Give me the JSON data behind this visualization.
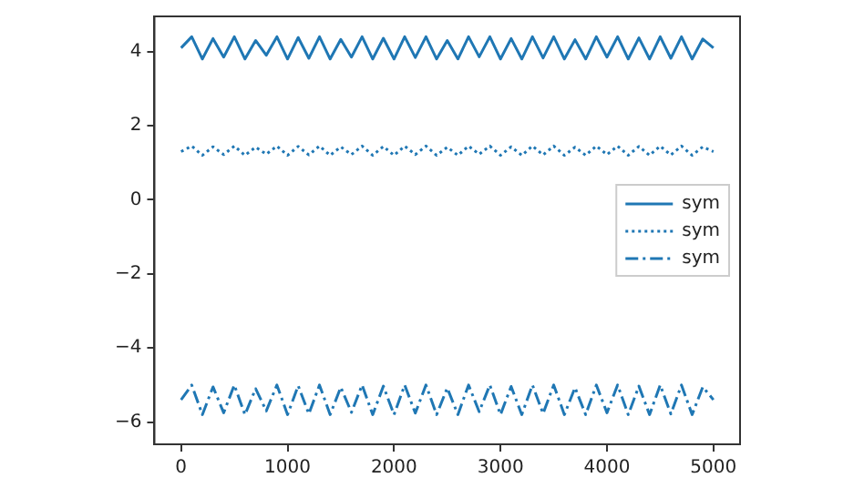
{
  "chart_data": {
    "type": "line",
    "x": [
      0,
      100,
      200,
      300,
      400,
      500,
      600,
      700,
      800,
      900,
      1000,
      1100,
      1200,
      1300,
      1400,
      1500,
      1600,
      1700,
      1800,
      1900,
      2000,
      2100,
      2200,
      2300,
      2400,
      2500,
      2600,
      2700,
      2800,
      2900,
      3000,
      3100,
      3200,
      3300,
      3400,
      3500,
      3600,
      3700,
      3800,
      3900,
      4000,
      4100,
      4200,
      4300,
      4400,
      4500,
      4600,
      4700,
      4800,
      4900,
      5000
    ],
    "series": [
      {
        "name": "sym",
        "color": "#1f77b4",
        "line_style": "solid",
        "values": [
          4.1,
          4.4,
          3.8,
          4.35,
          3.85,
          4.4,
          3.8,
          4.3,
          3.9,
          4.4,
          3.8,
          4.38,
          3.82,
          4.4,
          3.8,
          4.33,
          3.85,
          4.4,
          3.8,
          4.36,
          3.8,
          4.4,
          3.84,
          4.4,
          3.8,
          4.3,
          3.8,
          4.4,
          3.86,
          4.4,
          3.8,
          4.35,
          3.8,
          4.4,
          3.83,
          4.4,
          3.8,
          4.32,
          3.8,
          4.4,
          3.85,
          4.4,
          3.8,
          4.37,
          3.8,
          4.4,
          3.82,
          4.4,
          3.8,
          4.34,
          4.1
        ]
      },
      {
        "name": "sym",
        "color": "#1f77b4",
        "line_style": "dotted",
        "values": [
          1.3,
          1.45,
          1.2,
          1.43,
          1.22,
          1.45,
          1.2,
          1.42,
          1.23,
          1.45,
          1.2,
          1.44,
          1.21,
          1.45,
          1.2,
          1.43,
          1.22,
          1.45,
          1.2,
          1.44,
          1.2,
          1.45,
          1.22,
          1.45,
          1.2,
          1.42,
          1.2,
          1.45,
          1.23,
          1.45,
          1.2,
          1.43,
          1.2,
          1.45,
          1.21,
          1.45,
          1.2,
          1.42,
          1.2,
          1.45,
          1.22,
          1.45,
          1.2,
          1.44,
          1.2,
          1.45,
          1.21,
          1.45,
          1.2,
          1.43,
          1.3
        ]
      },
      {
        "name": "sym",
        "color": "#1f77b4",
        "line_style": "dashdot",
        "values": [
          -5.4,
          -5.0,
          -5.8,
          -5.05,
          -5.75,
          -5.0,
          -5.8,
          -5.1,
          -5.7,
          -5.0,
          -5.8,
          -5.02,
          -5.78,
          -5.0,
          -5.8,
          -5.06,
          -5.74,
          -5.0,
          -5.8,
          -5.03,
          -5.8,
          -5.0,
          -5.76,
          -5.0,
          -5.8,
          -5.08,
          -5.8,
          -5.0,
          -5.72,
          -5.0,
          -5.8,
          -5.04,
          -5.8,
          -5.0,
          -5.77,
          -5.0,
          -5.8,
          -5.07,
          -5.8,
          -5.0,
          -5.75,
          -5.0,
          -5.8,
          -5.03,
          -5.8,
          -5.0,
          -5.78,
          -5.0,
          -5.8,
          -5.05,
          -5.4
        ]
      }
    ],
    "xlim": [
      -250,
      5250
    ],
    "xticks": [
      0,
      1000,
      2000,
      3000,
      4000,
      5000
    ],
    "ylim": [
      -6.6,
      4.95
    ],
    "yticks": [
      {
        "value": -6,
        "label": "−6"
      },
      {
        "value": -4,
        "label": "−4"
      },
      {
        "value": -2,
        "label": "−2"
      },
      0,
      2,
      4
    ],
    "grid": false,
    "legend": "center right",
    "marker": "none"
  }
}
